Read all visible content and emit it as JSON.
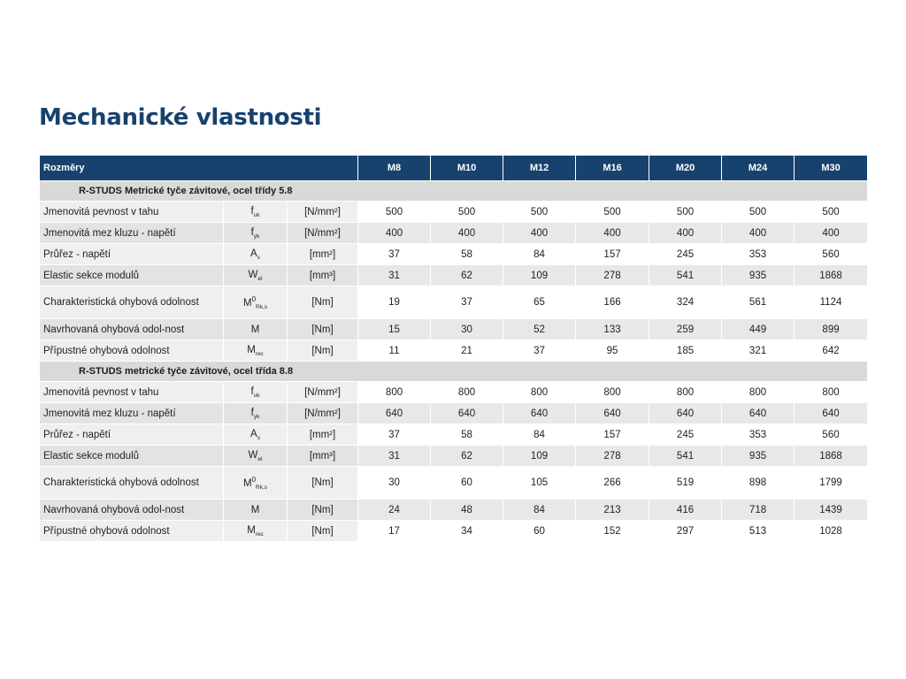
{
  "title": "Mechanické vlastnosti",
  "table": {
    "header_label": "Rozměry",
    "columns": [
      "M8",
      "M10",
      "M12",
      "M16",
      "M20",
      "M24",
      "M30"
    ],
    "sections": [
      {
        "title": "R-STUDS Metrické tyče závitové, ocel třídy 5.8",
        "rows": [
          {
            "label": "Jmenovitá pevnost v tahu",
            "sym_main": "f",
            "sym_sup": "",
            "sym_sub": "uk",
            "unit": "[N/mm²]",
            "values": [
              "500",
              "500",
              "500",
              "500",
              "500",
              "500",
              "500"
            ]
          },
          {
            "label": "Jmenovitá mez kluzu - napětí",
            "sym_main": "f",
            "sym_sup": "",
            "sym_sub": "yk",
            "unit": "[N/mm²]",
            "values": [
              "400",
              "400",
              "400",
              "400",
              "400",
              "400",
              "400"
            ]
          },
          {
            "label": "Průřez - napětí",
            "sym_main": "A",
            "sym_sup": "",
            "sym_sub": "s",
            "unit": "[mm²]",
            "values": [
              "37",
              "58",
              "84",
              "157",
              "245",
              "353",
              "560"
            ]
          },
          {
            "label": "Elastic sekce modulů",
            "sym_main": "W",
            "sym_sup": "",
            "sym_sub": "el",
            "unit": "[mm³]",
            "values": [
              "31",
              "62",
              "109",
              "278",
              "541",
              "935",
              "1868"
            ]
          },
          {
            "label": "Charakteristická ohybová odolnost",
            "sym_main": "M",
            "sym_sup": "0",
            "sym_sub": "Rk,s",
            "unit": "[Nm]",
            "values": [
              "19",
              "37",
              "65",
              "166",
              "324",
              "561",
              "1124"
            ]
          },
          {
            "label": "Navrhovaná ohybová odol-nost",
            "sym_main": "M",
            "sym_sup": "",
            "sym_sub": "",
            "unit": "[Nm]",
            "values": [
              "15",
              "30",
              "52",
              "133",
              "259",
              "449",
              "899"
            ]
          },
          {
            "label": "Přípustné ohybová odolnost",
            "sym_main": "M",
            "sym_sup": "",
            "sym_sub": "rec",
            "unit": "[Nm]",
            "values": [
              "11",
              "21",
              "37",
              "95",
              "185",
              "321",
              "642"
            ]
          }
        ]
      },
      {
        "title": "R-STUDS metrické tyče závitové, ocel třída 8.8",
        "rows": [
          {
            "label": "Jmenovitá pevnost v tahu",
            "sym_main": "f",
            "sym_sup": "",
            "sym_sub": "uk",
            "unit": "[N/mm²]",
            "values": [
              "800",
              "800",
              "800",
              "800",
              "800",
              "800",
              "800"
            ]
          },
          {
            "label": "Jmenovitá mez kluzu - napětí",
            "sym_main": "f",
            "sym_sup": "",
            "sym_sub": "yk",
            "unit": "[N/mm²]",
            "values": [
              "640",
              "640",
              "640",
              "640",
              "640",
              "640",
              "640"
            ]
          },
          {
            "label": "Průřez - napětí",
            "sym_main": "A",
            "sym_sup": "",
            "sym_sub": "s",
            "unit": "[mm²]",
            "values": [
              "37",
              "58",
              "84",
              "157",
              "245",
              "353",
              "560"
            ]
          },
          {
            "label": "Elastic sekce modulů",
            "sym_main": "W",
            "sym_sup": "",
            "sym_sub": "el",
            "unit": "[mm³]",
            "values": [
              "31",
              "62",
              "109",
              "278",
              "541",
              "935",
              "1868"
            ]
          },
          {
            "label": "Charakteristická ohybová odolnost",
            "sym_main": "M",
            "sym_sup": "0",
            "sym_sub": "Rk,s",
            "unit": "[Nm]",
            "values": [
              "30",
              "60",
              "105",
              "266",
              "519",
              "898",
              "1799"
            ]
          },
          {
            "label": "Navrhovaná ohybová odol-nost",
            "sym_main": "M",
            "sym_sup": "",
            "sym_sub": "",
            "unit": "[Nm]",
            "values": [
              "24",
              "48",
              "84",
              "213",
              "416",
              "718",
              "1439"
            ]
          },
          {
            "label": "Přípustné ohybová odolnost",
            "sym_main": "M",
            "sym_sup": "",
            "sym_sub": "rec",
            "unit": "[Nm]",
            "values": [
              "17",
              "34",
              "60",
              "152",
              "297",
              "513",
              "1028"
            ]
          }
        ]
      }
    ]
  },
  "colors": {
    "title": "#17426e",
    "header_bg": "#17426e",
    "section_bg": "#d9d9d9",
    "row_shade": "#e3e3e3"
  }
}
